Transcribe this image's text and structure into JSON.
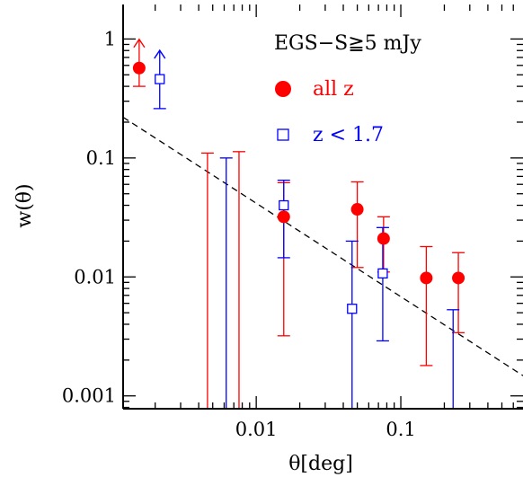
{
  "chart_data": {
    "type": "scatter",
    "title": "",
    "annotation": "EGS−S≧5 mJy",
    "xlabel": "θ[deg]",
    "ylabel": "w(θ)",
    "xscale": "log",
    "yscale": "log",
    "xlim": [
      0.0012,
      0.7
    ],
    "ylim": [
      0.00078,
      1.95
    ],
    "x_ticks": [
      {
        "value": 0.01,
        "label": "0.01"
      },
      {
        "value": 0.1,
        "label": "0.1"
      }
    ],
    "y_ticks": [
      {
        "value": 0.001,
        "label": "0.001"
      },
      {
        "value": 0.01,
        "label": "0.01"
      },
      {
        "value": 0.1,
        "label": "0.1"
      },
      {
        "value": 1,
        "label": "1"
      }
    ],
    "grid": false,
    "legend_position": "top-right",
    "series": [
      {
        "name": "all z",
        "color": "#ff0000",
        "marker": "filled-circle",
        "points": [
          {
            "x": 0.00155,
            "y": 0.57,
            "lo": 0.4,
            "hi": null,
            "lower_limit": true
          },
          {
            "x": 0.0155,
            "y": 0.032,
            "lo": 0.0032,
            "hi": 0.062
          },
          {
            "x": 0.05,
            "y": 0.037,
            "lo": 0.012,
            "hi": 0.063
          },
          {
            "x": 0.076,
            "y": 0.021,
            "lo": 0.011,
            "hi": 0.032
          },
          {
            "x": 0.15,
            "y": 0.0098,
            "lo": 0.0018,
            "hi": 0.018
          },
          {
            "x": 0.25,
            "y": 0.0098,
            "lo": 0.0034,
            "hi": 0.016
          }
        ],
        "bars_to_bottom": [
          {
            "x": 0.0046,
            "hi": 0.11
          },
          {
            "x": 0.0076,
            "hi": 0.113
          }
        ]
      },
      {
        "name": "z < 1.7",
        "color": "#0000ff",
        "marker": "open-square",
        "points": [
          {
            "x": 0.00215,
            "y": 0.46,
            "lo": 0.26,
            "hi": null,
            "lower_limit": true
          },
          {
            "x": 0.0155,
            "y": 0.04,
            "lo": 0.0145,
            "hi": 0.065
          },
          {
            "x": 0.046,
            "y": 0.0054,
            "lo": null,
            "hi": 0.02,
            "lower_open": true
          },
          {
            "x": 0.075,
            "y": 0.0107,
            "lo": 0.0029,
            "hi": 0.026
          }
        ],
        "bars_to_bottom": [
          {
            "x": 0.0062,
            "hi": 0.1
          },
          {
            "x": 0.23,
            "hi": 0.0053
          }
        ]
      }
    ],
    "fit_line": {
      "style": "dashed",
      "color": "#000000",
      "points": [
        [
          0.0012,
          0.22
        ],
        [
          0.7,
          0.00148
        ]
      ]
    }
  }
}
